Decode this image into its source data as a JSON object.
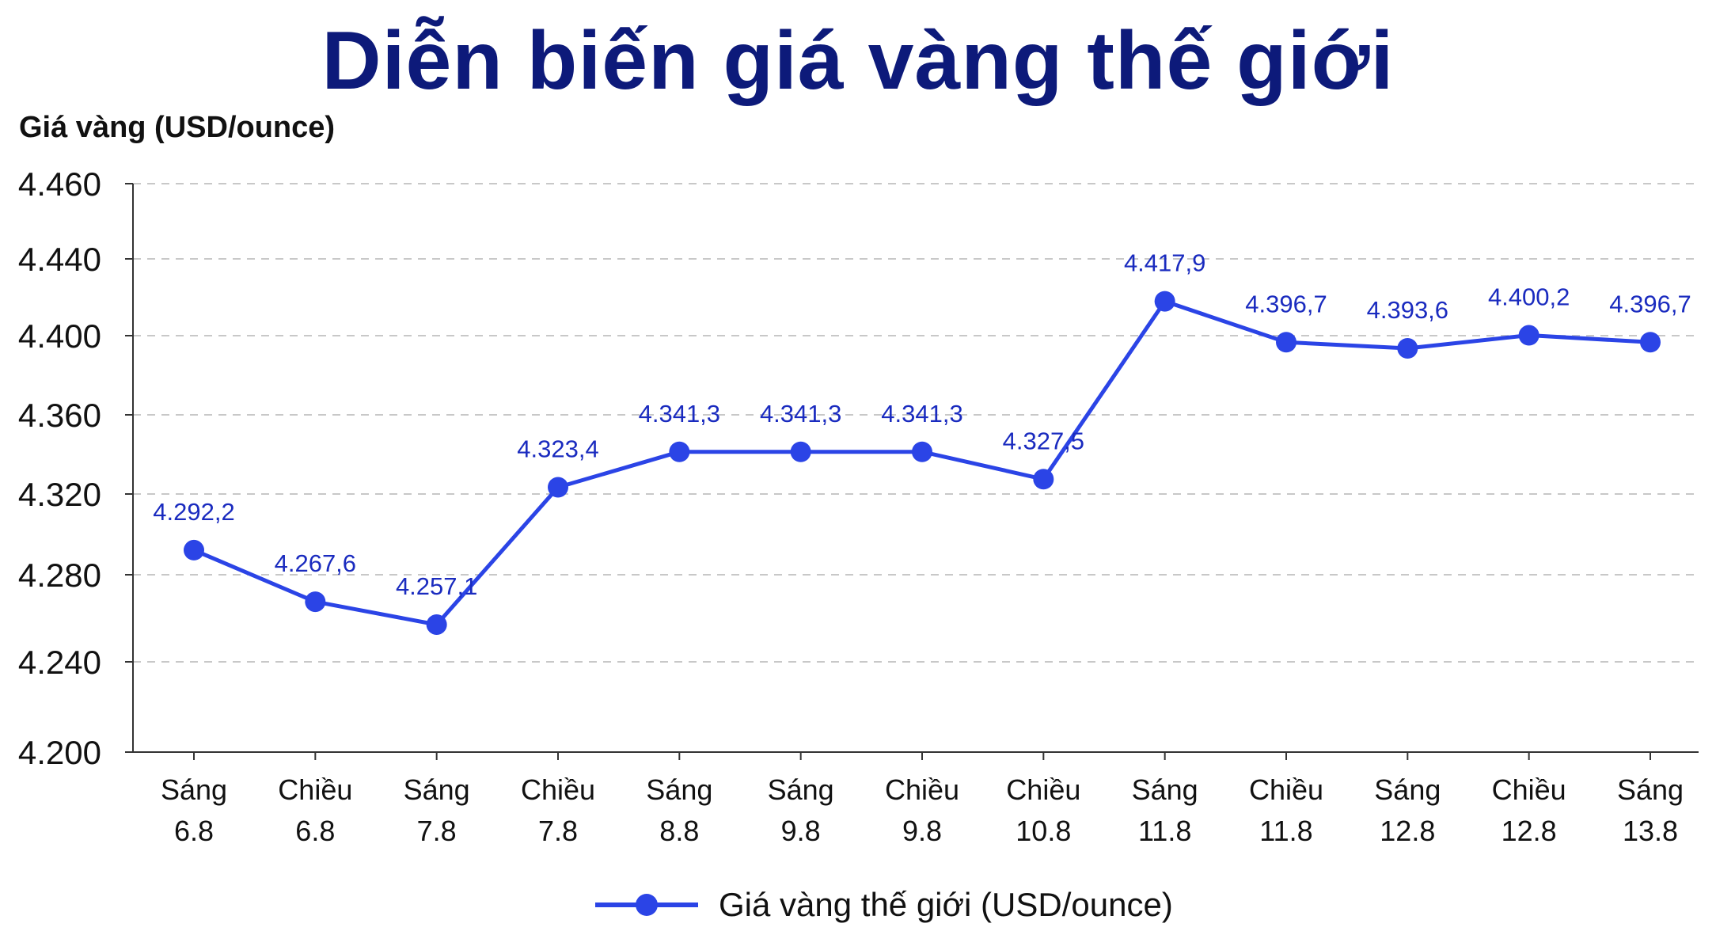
{
  "title": "Diễn biến giá vàng thế giới",
  "chart_data": {
    "type": "line",
    "ylabel": "Giá vàng (USD/ounce)",
    "xlabel": "",
    "ylim": [
      4200,
      4460
    ],
    "yticks": [
      "4.460",
      "4.440",
      "4.400",
      "4.360",
      "4.320",
      "4.280",
      "4.240",
      "4.200"
    ],
    "categories": [
      [
        "Sáng",
        "6.8"
      ],
      [
        "Chiều",
        "6.8"
      ],
      [
        "Sáng",
        "7.8"
      ],
      [
        "Chiều",
        "7.8"
      ],
      [
        "Sáng",
        "8.8"
      ],
      [
        "Sáng",
        "9.8"
      ],
      [
        "Chiều",
        "9.8"
      ],
      [
        "Chiều",
        "10.8"
      ],
      [
        "Sáng",
        "11.8"
      ],
      [
        "Chiều",
        "11.8"
      ],
      [
        "Sáng",
        "12.8"
      ],
      [
        "Chiều",
        "12.8"
      ],
      [
        "Sáng",
        "13.8"
      ]
    ],
    "series": [
      {
        "name": "Giá vàng thế giới (USD/ounce)",
        "color": "#2b44e6",
        "values": [
          4292.2,
          4267.6,
          4257.1,
          4323.4,
          4341.3,
          4341.3,
          4341.3,
          4327.5,
          4417.9,
          4396.7,
          4393.6,
          4400.2,
          4396.7
        ],
        "labels": [
          "4.292,2",
          "4.267,6",
          "4.257,1",
          "4.323,4",
          "4.341,3",
          "4.341,3",
          "4.341,3",
          "4.327,5",
          "4.417,9",
          "4.396,7",
          "4.393,6",
          "4.400,2",
          "4.396,7"
        ]
      }
    ],
    "grid": "horizontal dashed",
    "legend_position": "bottom"
  }
}
